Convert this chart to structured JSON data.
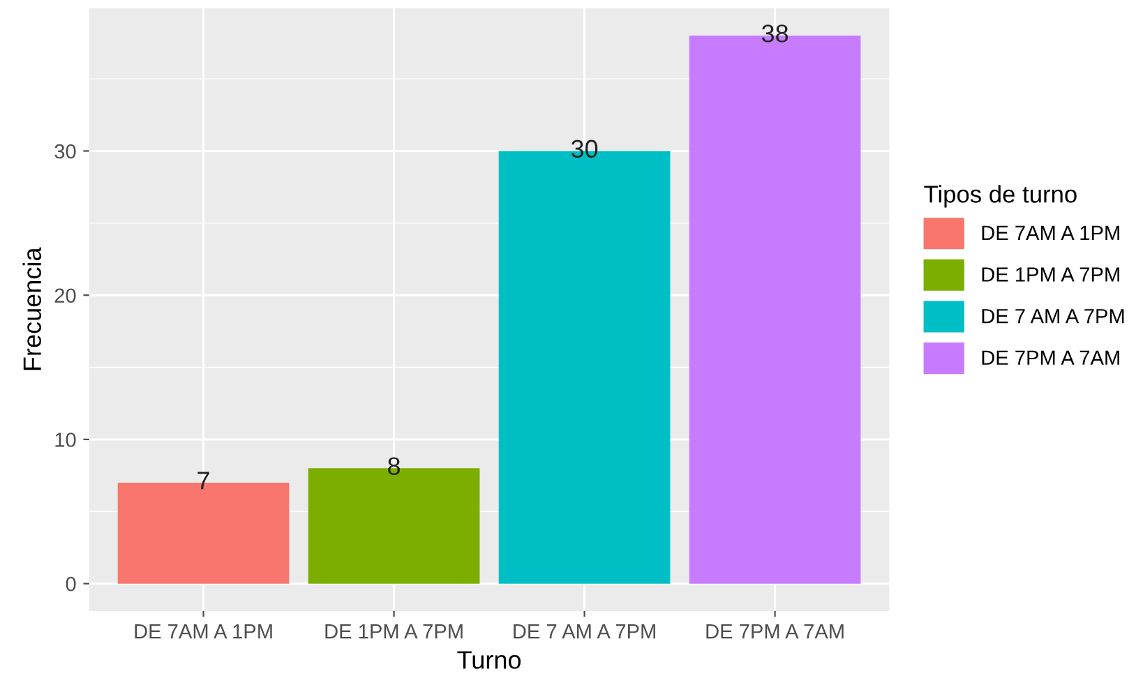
{
  "chart_data": {
    "type": "bar",
    "xlabel": "Turno",
    "ylabel": "Frecuencia",
    "legend_title": "Tipos de turno",
    "categories": [
      "DE 7AM A 1PM",
      "DE 1PM A 7PM",
      "DE 7 AM A 7PM",
      "DE 7PM A 7AM"
    ],
    "stacked": true,
    "series": [
      {
        "name": "DE 7AM A 1PM",
        "color": "#f8766d",
        "values": [
          7,
          null,
          null,
          null
        ]
      },
      {
        "name": "DE 1PM A 7PM",
        "color": "#7cae00",
        "values": [
          null,
          8,
          null,
          null
        ]
      },
      {
        "name": "DE 7 AM A 7PM",
        "color": "#00bfc4",
        "values": [
          null,
          null,
          30,
          null
        ]
      },
      {
        "name": "DE 7PM A 7AM",
        "color": "#c77cff",
        "values": [
          null,
          null,
          null,
          38
        ]
      }
    ],
    "ylim": [
      -1.9,
      39.9
    ],
    "yticks": [
      0,
      10,
      20,
      30
    ],
    "grid": true,
    "legend": "right",
    "data_labels": true
  }
}
